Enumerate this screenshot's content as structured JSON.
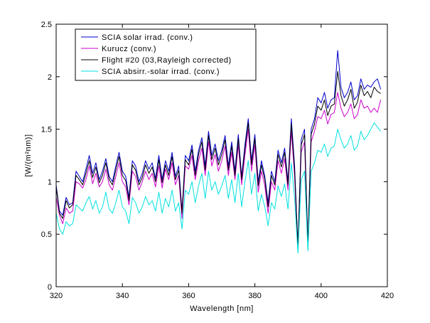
{
  "chart_data": {
    "type": "line",
    "xlabel": "Wavelength [nm]",
    "ylabel": "[W/(m²nm)]",
    "xlim": [
      320,
      420
    ],
    "ylim": [
      0,
      2.5
    ],
    "xticks": [
      "320",
      "340",
      "360",
      "380",
      "400",
      "420"
    ],
    "yticks": [
      "0",
      "0.5",
      "1",
      "1.5",
      "2",
      "2.5"
    ],
    "grid": false,
    "legend_position": "top-left",
    "x": [
      320,
      321,
      322,
      323,
      324,
      325,
      326,
      327,
      328,
      329,
      330,
      331,
      332,
      333,
      334,
      335,
      336,
      337,
      338,
      339,
      340,
      341,
      342,
      343,
      344,
      345,
      346,
      347,
      348,
      349,
      350,
      351,
      352,
      353,
      354,
      355,
      356,
      357,
      358,
      359,
      360,
      361,
      362,
      363,
      364,
      365,
      366,
      367,
      368,
      369,
      370,
      371,
      372,
      373,
      374,
      375,
      376,
      377,
      378,
      379,
      380,
      381,
      382,
      383,
      384,
      385,
      386,
      387,
      388,
      389,
      390,
      391,
      392,
      393,
      394,
      395,
      396,
      397,
      398,
      399,
      400,
      401,
      402,
      403,
      404,
      405,
      406,
      407,
      408,
      409,
      410,
      411,
      412,
      413,
      414,
      415,
      416,
      417,
      418
    ],
    "series": [
      {
        "name": "SCIA solar irrad. (conv.)",
        "color": "#0000cc",
        "values": [
          0.97,
          0.72,
          0.68,
          0.85,
          0.78,
          0.8,
          1.1,
          1.05,
          1.0,
          1.12,
          1.25,
          1.08,
          1.18,
          1.02,
          1.1,
          1.22,
          1.05,
          1.0,
          1.15,
          1.28,
          1.1,
          1.05,
          0.85,
          1.2,
          1.15,
          1.0,
          1.08,
          1.2,
          1.12,
          1.18,
          1.03,
          1.25,
          1.02,
          1.2,
          1.1,
          1.28,
          1.05,
          1.15,
          0.72,
          1.25,
          1.2,
          1.35,
          1.1,
          1.3,
          1.42,
          1.15,
          1.48,
          1.25,
          1.36,
          1.2,
          1.3,
          1.44,
          1.15,
          1.38,
          1.1,
          1.45,
          1.05,
          1.35,
          1.6,
          1.2,
          1.45,
          1.0,
          1.2,
          1.05,
          0.8,
          1.1,
          1.0,
          1.3,
          1.18,
          1.32,
          1.0,
          1.6,
          1.15,
          0.38,
          1.4,
          1.5,
          0.4,
          1.5,
          1.6,
          1.8,
          1.75,
          1.85,
          1.7,
          1.78,
          1.8,
          2.25,
          1.9,
          1.8,
          1.85,
          1.95,
          1.78,
          1.82,
          1.98,
          1.88,
          1.92,
          1.9,
          1.95,
          1.98,
          1.88
        ]
      },
      {
        "name": "Kurucz (conv.)",
        "color": "#cc00cc",
        "values": [
          0.85,
          0.68,
          0.6,
          0.75,
          0.7,
          0.72,
          1.0,
          0.98,
          0.94,
          1.02,
          1.15,
          0.98,
          1.08,
          0.95,
          1.0,
          1.12,
          0.97,
          0.92,
          1.05,
          1.18,
          1.0,
          0.95,
          0.78,
          1.1,
          1.05,
          0.92,
          1.0,
          1.1,
          1.02,
          1.08,
          0.95,
          1.15,
          0.94,
          1.12,
          1.02,
          1.18,
          0.97,
          1.06,
          0.65,
          1.15,
          1.12,
          1.25,
          1.02,
          1.2,
          1.32,
          1.06,
          1.38,
          1.15,
          1.26,
          1.1,
          1.2,
          1.34,
          1.06,
          1.28,
          1.02,
          1.35,
          0.97,
          1.25,
          1.5,
          1.1,
          1.35,
          0.9,
          1.1,
          0.96,
          0.7,
          1.0,
          0.92,
          1.2,
          1.08,
          1.22,
          0.92,
          1.48,
          1.05,
          0.34,
          1.28,
          1.38,
          0.36,
          1.38,
          1.48,
          1.62,
          1.6,
          1.68,
          1.55,
          1.64,
          1.66,
          1.85,
          1.7,
          1.62,
          1.66,
          1.74,
          1.6,
          1.64,
          1.78,
          1.7,
          1.72,
          1.66,
          1.7,
          1.66,
          1.78
        ]
      },
      {
        "name": "Flight #20 (03,Rayleigh corrected)",
        "color": "#000000",
        "values": [
          0.95,
          0.7,
          0.65,
          0.82,
          0.75,
          0.78,
          1.06,
          1.02,
          0.97,
          1.08,
          1.2,
          1.04,
          1.14,
          0.99,
          1.06,
          1.18,
          1.02,
          0.97,
          1.11,
          1.24,
          1.06,
          1.01,
          0.82,
          1.16,
          1.11,
          0.97,
          1.04,
          1.16,
          1.08,
          1.14,
          1.0,
          1.21,
          0.99,
          1.16,
          1.06,
          1.24,
          1.02,
          1.11,
          0.7,
          1.21,
          1.16,
          1.31,
          1.06,
          1.26,
          1.38,
          1.11,
          1.44,
          1.21,
          1.32,
          1.16,
          1.26,
          1.4,
          1.11,
          1.34,
          1.06,
          1.41,
          1.02,
          1.31,
          1.56,
          1.16,
          1.41,
          0.96,
          1.16,
          1.02,
          0.76,
          1.06,
          0.97,
          1.26,
          1.14,
          1.28,
          0.97,
          1.55,
          1.11,
          0.36,
          1.35,
          1.45,
          0.38,
          1.45,
          1.55,
          1.72,
          1.68,
          1.78,
          1.63,
          1.72,
          1.74,
          2.05,
          1.82,
          1.72,
          1.78,
          1.88,
          1.7,
          1.76,
          1.92,
          1.82,
          1.86,
          1.8,
          1.9,
          1.86,
          1.84
        ]
      },
      {
        "name": "SCIA absirr.-solar irrad. (conv.)",
        "color": "#00e0e0",
        "values": [
          0.7,
          0.55,
          0.5,
          0.62,
          0.58,
          0.6,
          0.78,
          0.75,
          0.72,
          0.8,
          0.86,
          0.74,
          0.82,
          0.7,
          0.76,
          0.9,
          0.74,
          0.7,
          0.8,
          0.92,
          0.76,
          0.72,
          0.6,
          0.85,
          0.8,
          0.7,
          0.76,
          0.86,
          0.78,
          0.82,
          0.72,
          0.9,
          0.7,
          0.84,
          0.76,
          0.92,
          0.72,
          0.8,
          0.55,
          0.92,
          0.88,
          1.0,
          0.8,
          0.96,
          1.08,
          0.84,
          1.1,
          0.92,
          1.0,
          0.88,
          0.96,
          1.06,
          0.84,
          1.02,
          0.8,
          1.08,
          0.76,
          1.0,
          1.2,
          0.88,
          1.08,
          0.72,
          0.88,
          0.76,
          0.58,
          0.8,
          0.74,
          0.96,
          0.86,
          0.98,
          0.74,
          1.18,
          0.84,
          0.32,
          1.02,
          1.1,
          0.34,
          1.1,
          1.18,
          1.3,
          1.28,
          1.36,
          1.24,
          1.32,
          1.34,
          1.5,
          1.4,
          1.32,
          1.36,
          1.44,
          1.3,
          1.34,
          1.48,
          1.4,
          1.44,
          1.5,
          1.56,
          1.52,
          1.48
        ]
      }
    ]
  }
}
